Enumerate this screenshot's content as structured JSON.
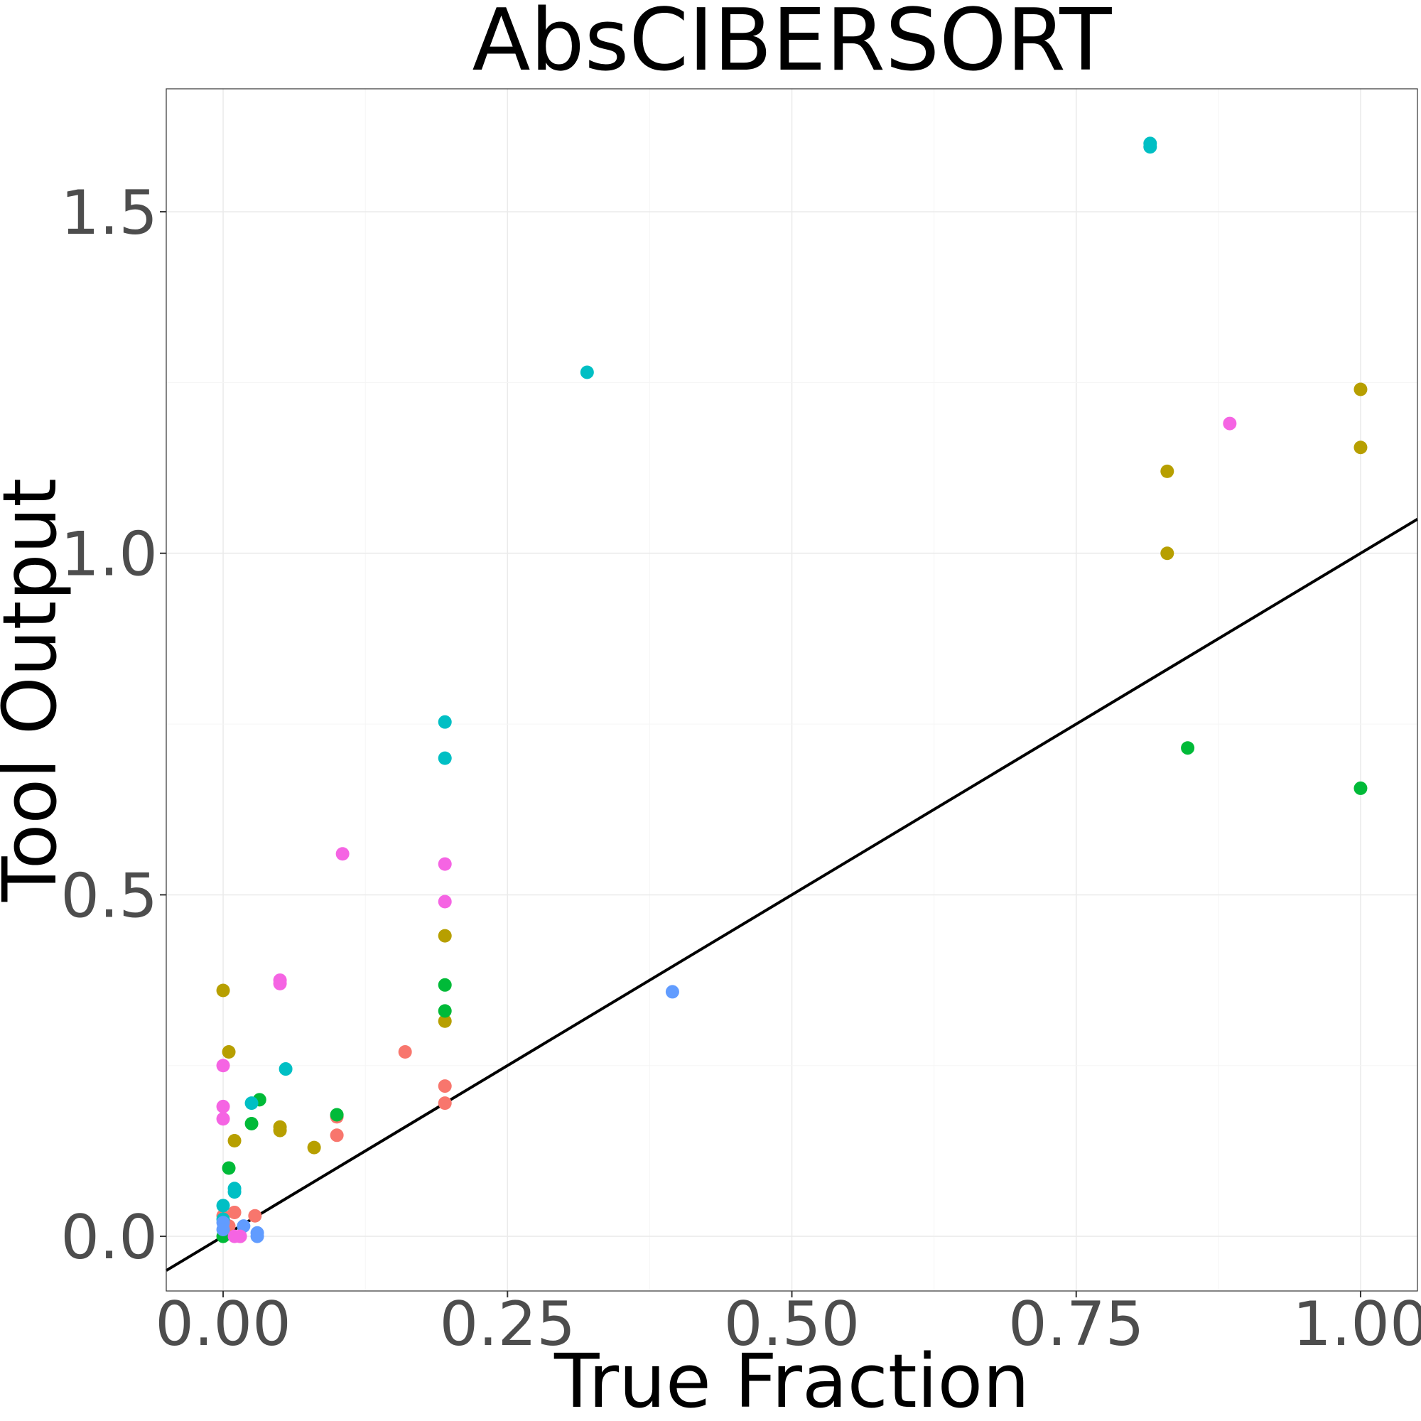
{
  "chart_data": {
    "type": "scatter",
    "title": "AbsCIBERSORT",
    "xlabel": "True Fraction",
    "ylabel": "Tool Output",
    "xlim": [
      -0.05,
      1.05
    ],
    "ylim": [
      -0.08,
      1.68
    ],
    "x_ticks": [
      0,
      0.25,
      0.5,
      0.75,
      1.0
    ],
    "x_tick_labels": [
      "0.00",
      "0.25",
      "0.50",
      "0.75",
      "1.00"
    ],
    "y_ticks": [
      0,
      0.5,
      1.0,
      1.5
    ],
    "y_tick_labels": [
      "0.0",
      "0.5",
      "1.0",
      "1.5"
    ],
    "grid": true,
    "legend": "none",
    "reference_line": {
      "slope": 1,
      "intercept": 0,
      "color": "#000000"
    },
    "series": [
      {
        "color": "#F8766D",
        "points": [
          [
            0.0,
            0.03
          ],
          [
            0.005,
            0.015
          ],
          [
            0.01,
            0.035
          ],
          [
            0.028,
            0.03
          ],
          [
            0.1,
            0.175
          ],
          [
            0.1,
            0.148
          ],
          [
            0.16,
            0.27
          ],
          [
            0.195,
            0.22
          ],
          [
            0.195,
            0.195
          ],
          [
            0.015,
            0.0
          ]
        ]
      },
      {
        "color": "#B79F00",
        "points": [
          [
            0.0,
            0.36
          ],
          [
            0.005,
            0.27
          ],
          [
            0.01,
            0.14
          ],
          [
            0.05,
            0.16
          ],
          [
            0.05,
            0.155
          ],
          [
            0.08,
            0.13
          ],
          [
            0.195,
            0.44
          ],
          [
            0.195,
            0.315
          ],
          [
            0.83,
            1.12
          ],
          [
            0.83,
            1.0
          ],
          [
            1.0,
            1.24
          ],
          [
            1.0,
            1.155
          ]
        ]
      },
      {
        "color": "#00BA38",
        "points": [
          [
            0.0,
            0.0
          ],
          [
            0.005,
            0.1
          ],
          [
            0.025,
            0.165
          ],
          [
            0.032,
            0.2
          ],
          [
            0.1,
            0.178
          ],
          [
            0.195,
            0.368
          ],
          [
            0.195,
            0.33
          ],
          [
            0.848,
            0.715
          ],
          [
            1.0,
            0.656
          ]
        ]
      },
      {
        "color": "#00BFC4",
        "points": [
          [
            0.0,
            0.045
          ],
          [
            0.0,
            0.025
          ],
          [
            0.01,
            0.065
          ],
          [
            0.01,
            0.07
          ],
          [
            0.025,
            0.195
          ],
          [
            0.055,
            0.245
          ],
          [
            0.195,
            0.753
          ],
          [
            0.195,
            0.7
          ],
          [
            0.32,
            1.265
          ],
          [
            0.815,
            1.6
          ],
          [
            0.815,
            1.595
          ]
        ]
      },
      {
        "color": "#619CFF",
        "points": [
          [
            0.0,
            0.02
          ],
          [
            0.0,
            0.01
          ],
          [
            0.018,
            0.015
          ],
          [
            0.03,
            0.005
          ],
          [
            0.03,
            0.0
          ],
          [
            0.395,
            0.358
          ]
        ]
      },
      {
        "color": "#F564E3",
        "points": [
          [
            0.0,
            0.25
          ],
          [
            0.0,
            0.19
          ],
          [
            0.0,
            0.172
          ],
          [
            0.05,
            0.375
          ],
          [
            0.05,
            0.37
          ],
          [
            0.105,
            0.56
          ],
          [
            0.195,
            0.545
          ],
          [
            0.195,
            0.49
          ],
          [
            0.885,
            1.19
          ],
          [
            0.01,
            0.0
          ],
          [
            0.015,
            0.0
          ]
        ]
      }
    ]
  }
}
